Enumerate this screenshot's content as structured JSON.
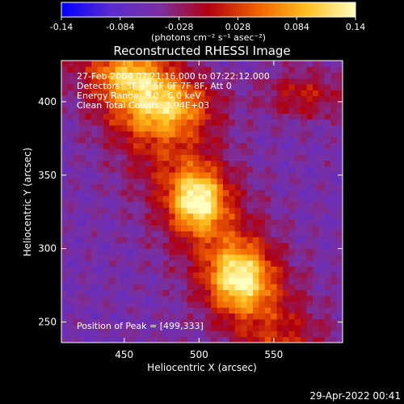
{
  "chart_data": {
    "type": "heatmap",
    "title": "Reconstructed RHESSI Image",
    "xlabel": "Heliocentric X (arcsec)",
    "ylabel": "Heliocentric Y (arcsec)",
    "xlim": [
      408,
      596
    ],
    "ylim": [
      236,
      428
    ],
    "x_ticks": [
      450,
      500,
      550
    ],
    "y_ticks": [
      250,
      300,
      350,
      400
    ],
    "colorbar": {
      "min": -0.14,
      "max": 0.14,
      "tick_values": [
        -0.14,
        -0.084,
        -0.028,
        0.028,
        0.084,
        0.14
      ],
      "tick_labels": [
        "-0.14",
        "-0.084",
        "-0.028",
        "0.028",
        "0.084",
        "0.14"
      ],
      "label": "(photons cm⁻² s⁻¹ asec⁻²)"
    },
    "colors": {
      "bar_stops": [
        "#0000ff",
        "#5a2bd0",
        "#7a30a0",
        "#b00010",
        "#f06000",
        "#ffc020",
        "#ffffc0"
      ]
    },
    "annotations": [
      "27-Feb-2004 07:21:16.000 to 07:22:12.000",
      "Detectors: 3F 4F 5F 6F 7F 8F, Att 0",
      "Energy Range: 3.0 - 6.0 keV",
      "Clean    Total Counts: 3.94E+03"
    ],
    "peak_text": "Position of Peak = [499,333]",
    "peak": [
      499,
      333
    ],
    "sources": [
      {
        "x": 499,
        "y": 333,
        "amp": 0.14,
        "sx": 12,
        "sy": 14
      },
      {
        "x": 527,
        "y": 280,
        "amp": 0.13,
        "sx": 14,
        "sy": 15
      },
      {
        "x": 478,
        "y": 398,
        "amp": 0.11,
        "sx": 22,
        "sy": 14
      },
      {
        "x": 455,
        "y": 418,
        "amp": 0.08,
        "sx": 16,
        "sy": 10
      },
      {
        "x": 570,
        "y": 405,
        "amp": 0.06,
        "sx": 20,
        "sy": 12
      }
    ]
  },
  "footer": {
    "timestamp": "29-Apr-2022 00:41"
  }
}
